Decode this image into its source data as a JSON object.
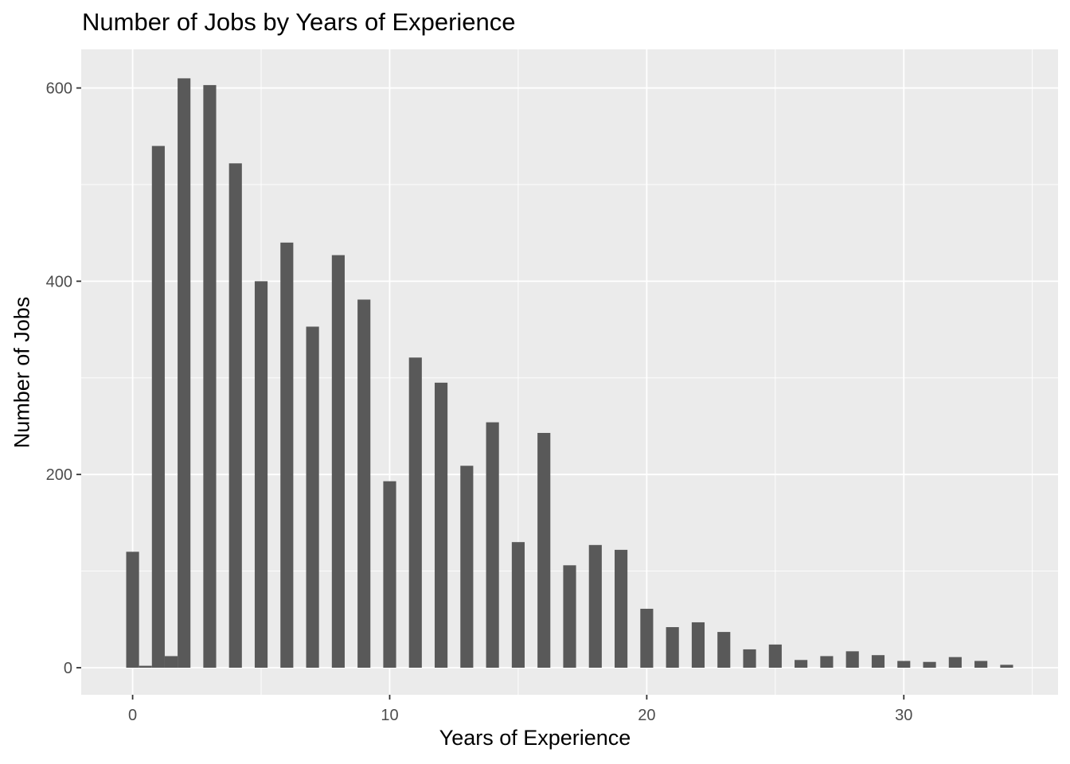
{
  "chart_data": {
    "type": "bar",
    "title": "Number of Jobs by Years of Experience",
    "xlabel": "Years of Experience",
    "ylabel": "Number of Jobs",
    "xlim": [
      -2,
      36
    ],
    "ylim": [
      -28,
      640
    ],
    "x_ticks": [
      0,
      10,
      20,
      30
    ],
    "y_ticks": [
      0,
      200,
      400,
      600
    ],
    "grid": true,
    "bar_width": 0.5,
    "x": [
      0,
      0.5,
      1,
      1.5,
      2,
      3,
      4,
      5,
      6,
      7,
      8,
      9,
      10,
      11,
      12,
      13,
      14,
      15,
      16,
      17,
      18,
      19,
      20,
      21,
      22,
      23,
      24,
      25,
      26,
      27,
      28,
      29,
      30,
      31,
      32,
      33,
      34
    ],
    "values": [
      120,
      2,
      540,
      12,
      610,
      603,
      522,
      400,
      440,
      353,
      427,
      381,
      193,
      321,
      295,
      209,
      254,
      130,
      243,
      106,
      127,
      122,
      61,
      42,
      47,
      37,
      19,
      24,
      8,
      12,
      17,
      13,
      7,
      6,
      11,
      7,
      3
    ],
    "bar_color": "#595959",
    "panel_color": "#EBEBEB",
    "grid_color": "#FFFFFF"
  }
}
